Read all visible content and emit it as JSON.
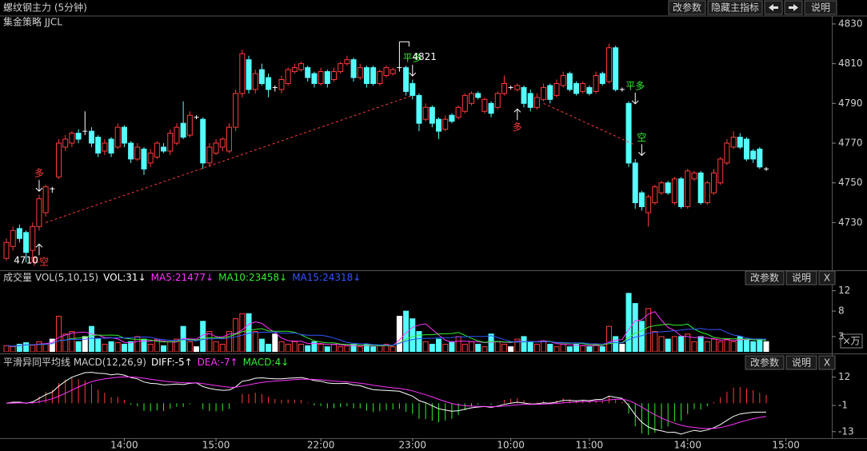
{
  "header": {
    "title": "螺纹钢主力 (5分钟)",
    "strategy": "集金策略 JJCL",
    "buttons": [
      "改参数",
      "隐藏主指标",
      "说明"
    ]
  },
  "chart_data": [
    {
      "type": "candlestick",
      "categories": [
        null,
        null,
        null,
        null,
        null,
        null,
        null,
        null,
        null,
        null,
        null,
        null,
        null,
        null,
        null,
        null,
        null,
        null,
        "14:00",
        null,
        null,
        null,
        null,
        null,
        null,
        null,
        null,
        null,
        null,
        null,
        null,
        null,
        "15:00",
        null,
        null,
        null,
        null,
        null,
        null,
        null,
        null,
        null,
        null,
        null,
        null,
        null,
        null,
        null,
        "22:00",
        null,
        null,
        null,
        null,
        null,
        null,
        null,
        null,
        null,
        null,
        null,
        null,
        null,
        "23:00",
        null,
        null,
        null,
        null,
        null,
        null,
        null,
        null,
        null,
        null,
        null,
        null,
        null,
        null,
        "10:00",
        null,
        null,
        null,
        null,
        null,
        null,
        null,
        null,
        null,
        null,
        null,
        "11:00",
        null,
        null,
        null,
        null,
        null,
        null,
        null,
        null,
        null,
        null,
        null,
        null,
        null,
        null,
        "14:00",
        null,
        null,
        null,
        null,
        null,
        null,
        null,
        null,
        null,
        null,
        null,
        null,
        null,
        null,
        "15:00"
      ],
      "open": [
        4712,
        4718,
        4727,
        4725,
        4716,
        4728,
        4735,
        4747,
        4753,
        4768,
        4770,
        4775,
        4776,
        4776,
        4773,
        4766,
        4772,
        4768,
        4778,
        4770,
        4762,
        4767,
        4760,
        4763,
        4768,
        4766,
        4770,
        4780,
        4774,
        4783,
        4782,
        4760,
        4765,
        4768,
        4766,
        4778,
        4795,
        4812,
        4797,
        4807,
        4803,
        4798,
        4797,
        4800,
        4806,
        4807,
        4808,
        4805,
        4800,
        4806,
        4802,
        4806,
        4810,
        4812,
        4803,
        4808,
        4808,
        4800,
        4804,
        4805,
        4808,
        4808,
        4800,
        4794,
        4782,
        4788,
        4782,
        4777,
        4784,
        4783,
        4786,
        4790,
        4795,
        4786,
        4790,
        4788,
        4795,
        4798,
        4797,
        4798,
        4795,
        4788,
        4792,
        4799,
        4794,
        4799,
        4805,
        4800,
        4796,
        4798,
        4796,
        4805,
        4801,
        4818,
        4797,
        4790,
        4760,
        4745,
        4735,
        4740,
        4745,
        4750,
        4740,
        4752,
        4738,
        4752,
        4755,
        4740,
        4745,
        4750,
        4760,
        4768,
        4773,
        4772,
        4766,
        4767,
        4757,
        null,
        null,
        null
      ],
      "high": [
        4722,
        4728,
        4729,
        4726,
        4730,
        4744,
        4749,
        4748,
        4772,
        4774,
        4776,
        4777,
        4786,
        4778,
        4774,
        4772,
        4773,
        4780,
        4779,
        4771,
        4770,
        4768,
        4767,
        4771,
        4770,
        4777,
        4780,
        4791,
        4786,
        4784,
        4783,
        4770,
        4772,
        4773,
        4780,
        4797,
        4817,
        4814,
        4807,
        4810,
        4805,
        4799,
        4804,
        4808,
        4810,
        4811,
        4809,
        4806,
        4808,
        4807,
        4808,
        4811,
        4814,
        4813,
        4810,
        4809,
        4809,
        4807,
        4809,
        4808,
        4821,
        4809,
        4802,
        4795,
        4790,
        4789,
        4783,
        4784,
        4785,
        4789,
        4795,
        4796,
        4796,
        4793,
        4791,
        4796,
        4804,
        4799,
        4800,
        4799,
        4797,
        4795,
        4800,
        4800,
        4802,
        4806,
        4806,
        4801,
        4801,
        4799,
        4806,
        4806,
        4820,
        4819,
        4798,
        4791,
        4762,
        4746,
        4744,
        4749,
        4751,
        4751,
        4753,
        4753,
        4757,
        4756,
        4756,
        4751,
        4757,
        4763,
        4772,
        4776,
        4775,
        4773,
        4767,
        4768,
        4758,
        null,
        null,
        null
      ],
      "low": [
        4711,
        4716,
        4720,
        4710,
        4712,
        4726,
        4733,
        4745,
        4752,
        4766,
        4768,
        4770,
        4774,
        4768,
        4763,
        4764,
        4763,
        4767,
        4768,
        4760,
        4761,
        4754,
        4758,
        4762,
        4765,
        4764,
        4769,
        4772,
        4773,
        4782,
        4757,
        4758,
        4764,
        4766,
        4765,
        4776,
        4793,
        4795,
        4795,
        4799,
        4793,
        4796,
        4795,
        4799,
        4805,
        4806,
        4801,
        4798,
        4799,
        4798,
        4801,
        4805,
        4809,
        4801,
        4802,
        4798,
        4799,
        4799,
        4803,
        4804,
        4806,
        4794,
        4792,
        4776,
        4781,
        4778,
        4772,
        4776,
        4780,
        4782,
        4785,
        4789,
        4792,
        4785,
        4783,
        4787,
        4794,
        4797,
        4796,
        4788,
        4786,
        4787,
        4791,
        4790,
        4793,
        4798,
        4796,
        4794,
        4795,
        4794,
        4795,
        4799,
        4800,
        4796,
        4796,
        4758,
        4737,
        4736,
        4728,
        4739,
        4744,
        4744,
        4739,
        4737,
        4737,
        4751,
        4739,
        4739,
        4744,
        4749,
        4759,
        4767,
        4767,
        4761,
        4760,
        4757,
        4756,
        null,
        null,
        null
      ],
      "close": [
        4720,
        4726,
        4722,
        4715,
        4728,
        4742,
        4748,
        4747,
        4770,
        4772,
        4775,
        4772,
        4776,
        4770,
        4765,
        4770,
        4765,
        4778,
        4770,
        4762,
        4768,
        4757,
        4765,
        4770,
        4766,
        4775,
        4778,
        4773,
        4784,
        4783,
        4760,
        4768,
        4770,
        4772,
        4778,
        4795,
        4815,
        4797,
        4805,
        4800,
        4797,
        4798,
        4802,
        4807,
        4808,
        4810,
        4803,
        4800,
        4806,
        4800,
        4806,
        4810,
        4812,
        4803,
        4808,
        4800,
        4800,
        4806,
        4808,
        4807,
        4808,
        4796,
        4794,
        4780,
        4788,
        4780,
        4776,
        4782,
        4781,
        4788,
        4794,
        4795,
        4793,
        4792,
        4785,
        4795,
        4800,
        4798,
        4799,
        4790,
        4788,
        4793,
        4798,
        4792,
        4800,
        4804,
        4797,
        4795,
        4800,
        4795,
        4804,
        4800,
        4818,
        4797,
        4797,
        4760,
        4740,
        4738,
        4743,
        4748,
        4750,
        4745,
        4752,
        4738,
        4756,
        4755,
        4740,
        4750,
        4755,
        4762,
        4770,
        4773,
        4768,
        4762,
        4762,
        4758,
        4757,
        null,
        null,
        null
      ],
      "up_color": "#ff3c3c",
      "down_color": "#54fcfc",
      "flat_color": "#ffffff",
      "ylim": [
        4706,
        4834
      ],
      "yticks": [
        4730,
        4750,
        4770,
        4790,
        4810,
        4830
      ],
      "annotations": [
        {
          "value": 4821,
          "index": 60
        },
        {
          "value": 4710,
          "index": 3
        }
      ],
      "signals": [
        {
          "text": "多",
          "index": 5,
          "price": 4745,
          "color": "#ff3c3c"
        },
        {
          "text": "平空",
          "index": 5,
          "price": 4720,
          "color": "#ff3c3c"
        },
        {
          "text": "平多",
          "index": 62,
          "price": 4803,
          "color": "#33ee33"
        },
        {
          "text": "多",
          "index": 78,
          "price": 4788,
          "color": "#ff3c3c"
        },
        {
          "text": "平多",
          "index": 96,
          "price": 4789,
          "color": "#33ee33"
        },
        {
          "text": "空",
          "index": 97,
          "price": 4763,
          "color": "#33ee33"
        }
      ],
      "lines": [
        {
          "x": [
            6,
            62
          ],
          "y": [
            4730,
            4794
          ],
          "color": "#ff3c3c"
        },
        {
          "x": [
            82,
            96
          ],
          "y": [
            4790,
            4769
          ],
          "color": "#ff3c3c"
        }
      ]
    },
    {
      "type": "volume",
      "title": "成交量 VOL(5,10,15)",
      "legend": [
        {
          "text": "VOL:31↓",
          "color": "#ffffff"
        },
        {
          "text": "MA5:21477↓",
          "color": "#ff33ff"
        },
        {
          "text": "MA10:23458↓",
          "color": "#33ee33"
        },
        {
          "text": "MA15:24318↓",
          "color": "#3355ff"
        }
      ],
      "values": [
        1.2,
        1.0,
        1.5,
        1.8,
        1.3,
        2.0,
        1.5,
        2.5,
        7.0,
        3.5,
        4.0,
        2.0,
        3.0,
        5.0,
        2.5,
        1.5,
        2.0,
        1.8,
        1.5,
        2.0,
        3.0,
        2.5,
        1.5,
        2.5,
        1.2,
        2.0,
        2.5,
        5.0,
        2.0,
        1.0,
        6.0,
        4.0,
        2.0,
        1.5,
        4.0,
        6.5,
        7.5,
        7.5,
        4.0,
        2.5,
        1.5,
        3.5,
        2.0,
        1.5,
        2.0,
        1.5,
        1.2,
        2.0,
        1.5,
        1.0,
        1.5,
        1.0,
        1.2,
        1.5,
        1.0,
        1.5,
        1.0,
        1.2,
        1.5,
        1.0,
        7.0,
        8.0,
        6.5,
        4.0,
        2.0,
        1.5,
        2.5,
        1.5,
        2.0,
        3.0,
        1.5,
        2.0,
        1.5,
        1.0,
        3.5,
        2.0,
        1.5,
        1.0,
        2.5,
        3.0,
        2.0,
        1.5,
        2.0,
        1.5,
        1.0,
        1.5,
        1.0,
        1.5,
        1.2,
        1.0,
        1.5,
        1.0,
        5.0,
        3.0,
        1.5,
        11.5,
        9.5,
        6.0,
        8.5,
        4.0,
        3.0,
        2.5,
        3.0,
        3.0,
        3.5,
        2.0,
        3.0,
        2.0,
        2.5,
        2.0,
        2.5,
        2.0,
        3.0,
        2.5,
        2.0,
        2.5,
        2.0,
        null,
        null,
        null
      ],
      "ma": [
        {
          "period": 5,
          "color": "#ff33ff"
        },
        {
          "period": 10,
          "color": "#33ee33"
        },
        {
          "period": 15,
          "color": "#3355ff"
        }
      ],
      "buttons": [
        "改参数",
        "说明",
        "X"
      ],
      "unit": "×万",
      "ylim": [
        0,
        13.2
      ],
      "yticks": [
        3,
        8,
        12
      ]
    },
    {
      "type": "macd",
      "title": "平滑异同平均线 MACD(12,26,9)",
      "legend": [
        {
          "text": "DIFF:-5↑",
          "color": "#ffffff"
        },
        {
          "text": "DEA:-7↑",
          "color": "#ff33ff"
        },
        {
          "text": "MACD:4↓",
          "color": "#33ee33"
        }
      ],
      "params": [
        12,
        26,
        9
      ],
      "diff_color": "#ffffff",
      "dea_color": "#ff33ff",
      "up_color": "#ff3c3c",
      "down_color": "#33ee33",
      "buttons": [
        "改参数",
        "说明",
        "X"
      ],
      "ylim": [
        -16,
        15.5
      ],
      "yticks": [
        12,
        -1,
        -13
      ]
    }
  ]
}
